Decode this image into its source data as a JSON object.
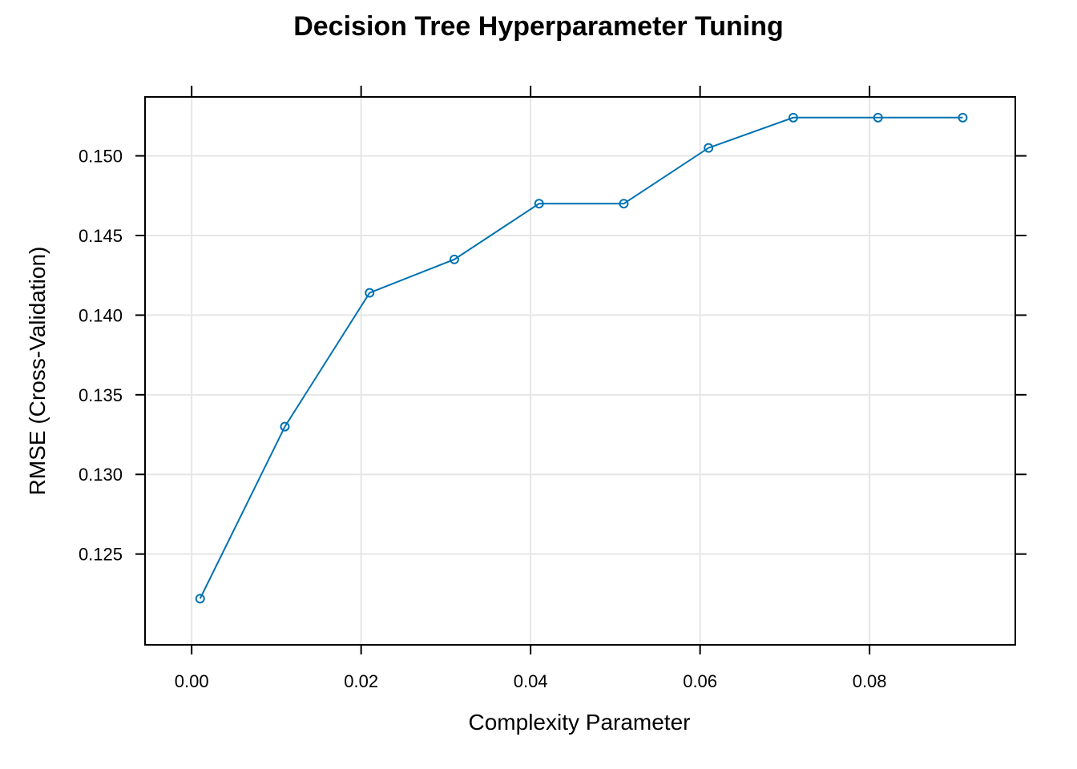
{
  "chart_data": {
    "type": "line",
    "title": "Decision Tree Hyperparameter Tuning",
    "xlabel": "Complexity Parameter",
    "ylabel": "RMSE (Cross-Validation)",
    "xlim": [
      -0.0055,
      0.0972
    ],
    "ylim": [
      0.1193,
      0.1537
    ],
    "x_ticks": [
      0.0,
      0.02,
      0.04,
      0.06,
      0.08
    ],
    "x_tick_labels": [
      "0.00",
      "0.02",
      "0.04",
      "0.06",
      "0.08"
    ],
    "y_ticks": [
      0.125,
      0.13,
      0.135,
      0.14,
      0.145,
      0.15
    ],
    "y_tick_labels": [
      "0.125",
      "0.130",
      "0.135",
      "0.140",
      "0.145",
      "0.150"
    ],
    "grid": true,
    "series": [
      {
        "color": "#0072B2",
        "marker": "open-circle",
        "x": [
          0.001,
          0.011,
          0.021,
          0.031,
          0.041,
          0.051,
          0.061,
          0.071,
          0.081,
          0.091
        ],
        "y": [
          0.1222,
          0.133,
          0.1414,
          0.1435,
          0.147,
          0.147,
          0.1505,
          0.1524,
          0.1524,
          0.1524
        ]
      }
    ]
  }
}
